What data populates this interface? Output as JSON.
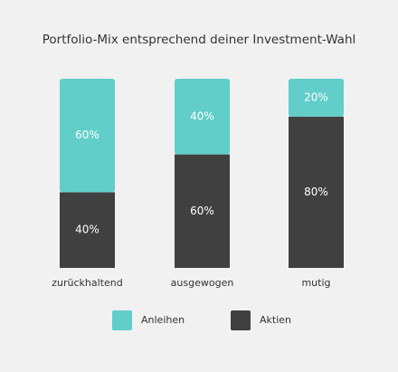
{
  "chart_data": {
    "type": "stacked-bar",
    "title": "Portfolio-Mix entsprechend deiner Investment-Wahl",
    "categories": [
      "zurückhaltend",
      "ausgewogen",
      "mutig"
    ],
    "series": [
      {
        "name": "Anleihen",
        "color": "#62ceca",
        "values": [
          60,
          40,
          20
        ],
        "value_labels": [
          "60%",
          "40%",
          "20%"
        ]
      },
      {
        "name": "Aktien",
        "color": "#404040",
        "values": [
          40,
          60,
          80
        ],
        "value_labels": [
          "40%",
          "60%",
          "80%"
        ]
      }
    ],
    "ylim": [
      0,
      100
    ]
  }
}
